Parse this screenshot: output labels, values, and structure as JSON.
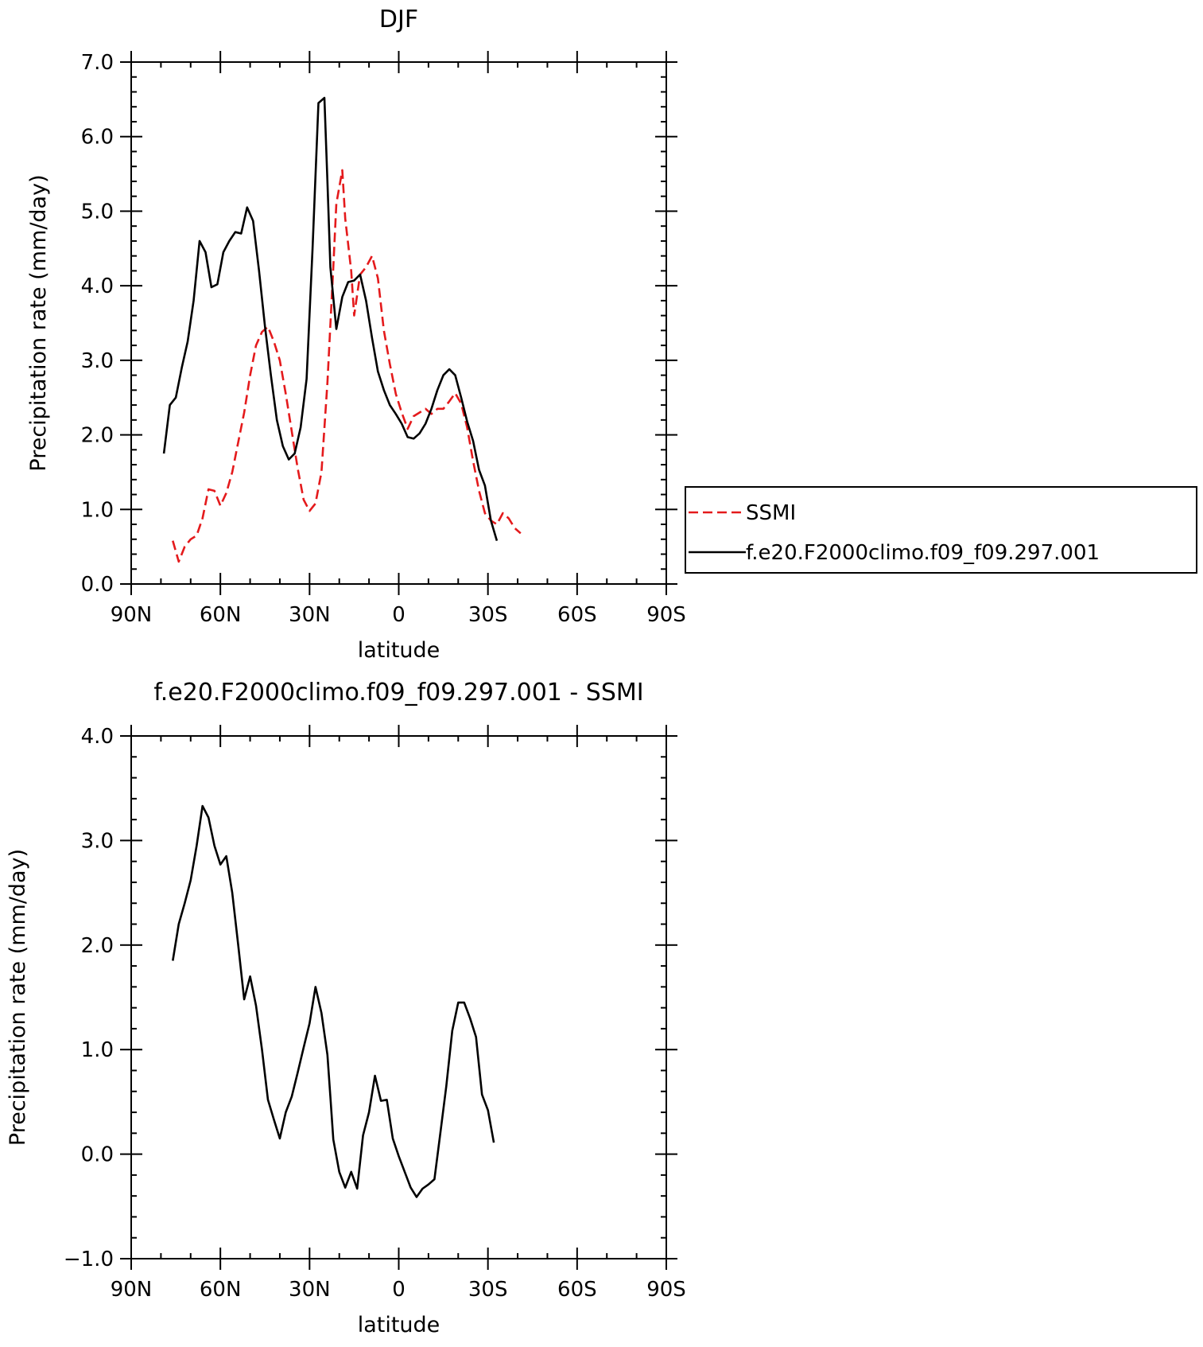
{
  "chart_data": [
    {
      "type": "line",
      "title": "DJF",
      "xlabel": "latitude",
      "ylabel": "Precipitation rate (mm/day)",
      "xlim": [
        90,
        -90
      ],
      "ylim": [
        0,
        7
      ],
      "x_ticks": [
        {
          "value": 90,
          "label": "90N"
        },
        {
          "value": 60,
          "label": "60N"
        },
        {
          "value": 30,
          "label": "30N"
        },
        {
          "value": 0,
          "label": "0"
        },
        {
          "value": -30,
          "label": "30S"
        },
        {
          "value": -60,
          "label": "60S"
        },
        {
          "value": -90,
          "label": "90S"
        }
      ],
      "y_ticks": [
        {
          "value": 0,
          "label": "0.0"
        },
        {
          "value": 1,
          "label": "1.0"
        },
        {
          "value": 2,
          "label": "2.0"
        },
        {
          "value": 3,
          "label": "3.0"
        },
        {
          "value": 4,
          "label": "4.0"
        },
        {
          "value": 5,
          "label": "5.0"
        },
        {
          "value": 6,
          "label": "6.0"
        },
        {
          "value": 7,
          "label": "7.0"
        }
      ],
      "legend": {
        "placement": "right"
      },
      "series": [
        {
          "name": "SSMI",
          "color": "#e41a1c",
          "dash": true,
          "points": [
            [
              76,
              0.58
            ],
            [
              74,
              0.3
            ],
            [
              72,
              0.5
            ],
            [
              70,
              0.6
            ],
            [
              68,
              0.65
            ],
            [
              66,
              0.88
            ],
            [
              64,
              1.27
            ],
            [
              62,
              1.25
            ],
            [
              60,
              1.05
            ],
            [
              58,
              1.22
            ],
            [
              56,
              1.5
            ],
            [
              54,
              1.9
            ],
            [
              52,
              2.3
            ],
            [
              50,
              2.8
            ],
            [
              48,
              3.2
            ],
            [
              46,
              3.38
            ],
            [
              44,
              3.45
            ],
            [
              42,
              3.25
            ],
            [
              40,
              3.0
            ],
            [
              38,
              2.55
            ],
            [
              36,
              2.05
            ],
            [
              34,
              1.55
            ],
            [
              32,
              1.13
            ],
            [
              30,
              0.98
            ],
            [
              28,
              1.08
            ],
            [
              26,
              1.5
            ],
            [
              24,
              2.7
            ],
            [
              22,
              4.25
            ],
            [
              21,
              5.1
            ],
            [
              19,
              5.55
            ],
            [
              18,
              4.9
            ],
            [
              16,
              4.2
            ],
            [
              15,
              3.6
            ],
            [
              13,
              4.15
            ],
            [
              11,
              4.25
            ],
            [
              9,
              4.4
            ],
            [
              7,
              4.1
            ],
            [
              5,
              3.4
            ],
            [
              3,
              2.95
            ],
            [
              1,
              2.55
            ],
            [
              -1,
              2.3
            ],
            [
              -3,
              2.08
            ],
            [
              -5,
              2.25
            ],
            [
              -7,
              2.3
            ],
            [
              -9,
              2.35
            ],
            [
              -11,
              2.28
            ],
            [
              -13,
              2.35
            ],
            [
              -15,
              2.35
            ],
            [
              -17,
              2.45
            ],
            [
              -19,
              2.56
            ],
            [
              -21,
              2.42
            ],
            [
              -23,
              2.1
            ],
            [
              -25,
              1.65
            ],
            [
              -27,
              1.25
            ],
            [
              -29,
              0.95
            ],
            [
              -31,
              0.85
            ],
            [
              -33,
              0.8
            ],
            [
              -35,
              0.95
            ],
            [
              -37,
              0.88
            ],
            [
              -39,
              0.75
            ],
            [
              -41,
              0.68
            ]
          ]
        },
        {
          "name": "f.e20.F2000climo.f09_f09.297.001",
          "color": "#000000",
          "dash": false,
          "points": [
            [
              79,
              1.75
            ],
            [
              77,
              2.4
            ],
            [
              75,
              2.5
            ],
            [
              73,
              2.9
            ],
            [
              71,
              3.25
            ],
            [
              69,
              3.8
            ],
            [
              67,
              4.6
            ],
            [
              65,
              4.45
            ],
            [
              63,
              3.98
            ],
            [
              61,
              4.02
            ],
            [
              59,
              4.45
            ],
            [
              57,
              4.6
            ],
            [
              55,
              4.72
            ],
            [
              53,
              4.7
            ],
            [
              51,
              5.05
            ],
            [
              49,
              4.87
            ],
            [
              47,
              4.2
            ],
            [
              45,
              3.45
            ],
            [
              43,
              2.8
            ],
            [
              41,
              2.2
            ],
            [
              39,
              1.85
            ],
            [
              37,
              1.67
            ],
            [
              35,
              1.75
            ],
            [
              33,
              2.1
            ],
            [
              31,
              2.75
            ],
            [
              29,
              4.5
            ],
            [
              27,
              6.45
            ],
            [
              25,
              6.52
            ],
            [
              24,
              5.4
            ],
            [
              23,
              4.25
            ],
            [
              21,
              3.42
            ],
            [
              19,
              3.85
            ],
            [
              17,
              4.05
            ],
            [
              15,
              4.07
            ],
            [
              13,
              4.15
            ],
            [
              11,
              3.8
            ],
            [
              9,
              3.3
            ],
            [
              7,
              2.85
            ],
            [
              5,
              2.6
            ],
            [
              3,
              2.4
            ],
            [
              1,
              2.28
            ],
            [
              -1,
              2.15
            ],
            [
              -3,
              1.97
            ],
            [
              -5,
              1.95
            ],
            [
              -7,
              2.02
            ],
            [
              -9,
              2.15
            ],
            [
              -11,
              2.35
            ],
            [
              -13,
              2.6
            ],
            [
              -15,
              2.8
            ],
            [
              -17,
              2.88
            ],
            [
              -19,
              2.8
            ],
            [
              -21,
              2.5
            ],
            [
              -23,
              2.18
            ],
            [
              -25,
              1.92
            ],
            [
              -27,
              1.53
            ],
            [
              -29,
              1.32
            ],
            [
              -31,
              0.85
            ],
            [
              -33,
              0.58
            ]
          ]
        }
      ]
    },
    {
      "type": "line",
      "title": "f.e20.F2000climo.f09_f09.297.001 - SSMI",
      "xlabel": "latitude",
      "ylabel": "Precipitation rate (mm/day)",
      "xlim": [
        90,
        -90
      ],
      "ylim": [
        -1,
        4
      ],
      "x_ticks": [
        {
          "value": 90,
          "label": "90N"
        },
        {
          "value": 60,
          "label": "60N"
        },
        {
          "value": 30,
          "label": "30N"
        },
        {
          "value": 0,
          "label": "0"
        },
        {
          "value": -30,
          "label": "30S"
        },
        {
          "value": -60,
          "label": "60S"
        },
        {
          "value": -90,
          "label": "90S"
        }
      ],
      "y_ticks": [
        {
          "value": -1,
          "label": "−1.0"
        },
        {
          "value": 0,
          "label": "0.0"
        },
        {
          "value": 1,
          "label": "1.0"
        },
        {
          "value": 2,
          "label": "2.0"
        },
        {
          "value": 3,
          "label": "3.0"
        },
        {
          "value": 4,
          "label": "4.0"
        }
      ],
      "series": [
        {
          "name": "",
          "color": "#000000",
          "dash": false,
          "points": [
            [
              76,
              1.85
            ],
            [
              74,
              2.2
            ],
            [
              72,
              2.4
            ],
            [
              70,
              2.62
            ],
            [
              68,
              2.95
            ],
            [
              66,
              3.33
            ],
            [
              64,
              3.22
            ],
            [
              62,
              2.95
            ],
            [
              60,
              2.77
            ],
            [
              58,
              2.85
            ],
            [
              56,
              2.5
            ],
            [
              54,
              2.0
            ],
            [
              52,
              1.48
            ],
            [
              50,
              1.7
            ],
            [
              48,
              1.42
            ],
            [
              46,
              1.0
            ],
            [
              44,
              0.52
            ],
            [
              42,
              0.33
            ],
            [
              40,
              0.15
            ],
            [
              38,
              0.4
            ],
            [
              36,
              0.55
            ],
            [
              34,
              0.78
            ],
            [
              32,
              1.02
            ],
            [
              30,
              1.25
            ],
            [
              28,
              1.6
            ],
            [
              26,
              1.35
            ],
            [
              24,
              0.95
            ],
            [
              23,
              0.55
            ],
            [
              22,
              0.14
            ],
            [
              20,
              -0.17
            ],
            [
              18,
              -0.32
            ],
            [
              16,
              -0.17
            ],
            [
              14,
              -0.33
            ],
            [
              12,
              0.18
            ],
            [
              10,
              0.4
            ],
            [
              8,
              0.75
            ],
            [
              6,
              0.51
            ],
            [
              4,
              0.52
            ],
            [
              2,
              0.15
            ],
            [
              0,
              -0.02
            ],
            [
              -2,
              -0.17
            ],
            [
              -4,
              -0.32
            ],
            [
              -6,
              -0.41
            ],
            [
              -8,
              -0.33
            ],
            [
              -10,
              -0.29
            ],
            [
              -12,
              -0.24
            ],
            [
              -14,
              0.2
            ],
            [
              -16,
              0.65
            ],
            [
              -18,
              1.18
            ],
            [
              -20,
              1.45
            ],
            [
              -22,
              1.45
            ],
            [
              -24,
              1.3
            ],
            [
              -26,
              1.12
            ],
            [
              -28,
              0.57
            ],
            [
              -30,
              0.42
            ],
            [
              -32,
              0.11
            ]
          ]
        }
      ]
    }
  ]
}
